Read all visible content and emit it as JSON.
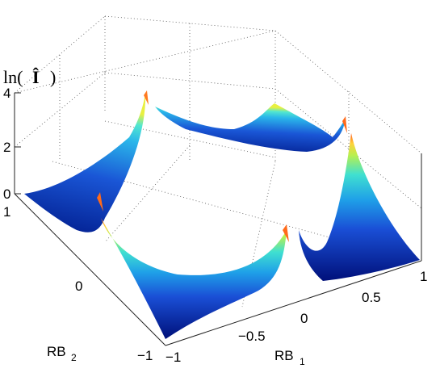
{
  "chart_data": {
    "type": "surface",
    "title": "",
    "zlabel_text": "ln(",
    "zlabel_symbol": "Î",
    "zlabel_close": ")",
    "xlabel_base": "RB",
    "xlabel_sub": "1",
    "ylabel_base": "RB",
    "ylabel_sub": "2",
    "xlim": [
      -1,
      1
    ],
    "ylim": [
      -1,
      1
    ],
    "zlim": [
      0,
      4
    ],
    "x_ticks": [
      "−1",
      "−0.5",
      "0",
      "0.5",
      "1"
    ],
    "y_ticks": [
      "−1",
      "0",
      "1"
    ],
    "z_ticks": [
      "0",
      "2",
      "4"
    ],
    "grid": true,
    "colormap": "jet",
    "description_of_surface": {
      "value_at_corners": 0.2,
      "peak_values_near_midlines": 4.0
    }
  }
}
